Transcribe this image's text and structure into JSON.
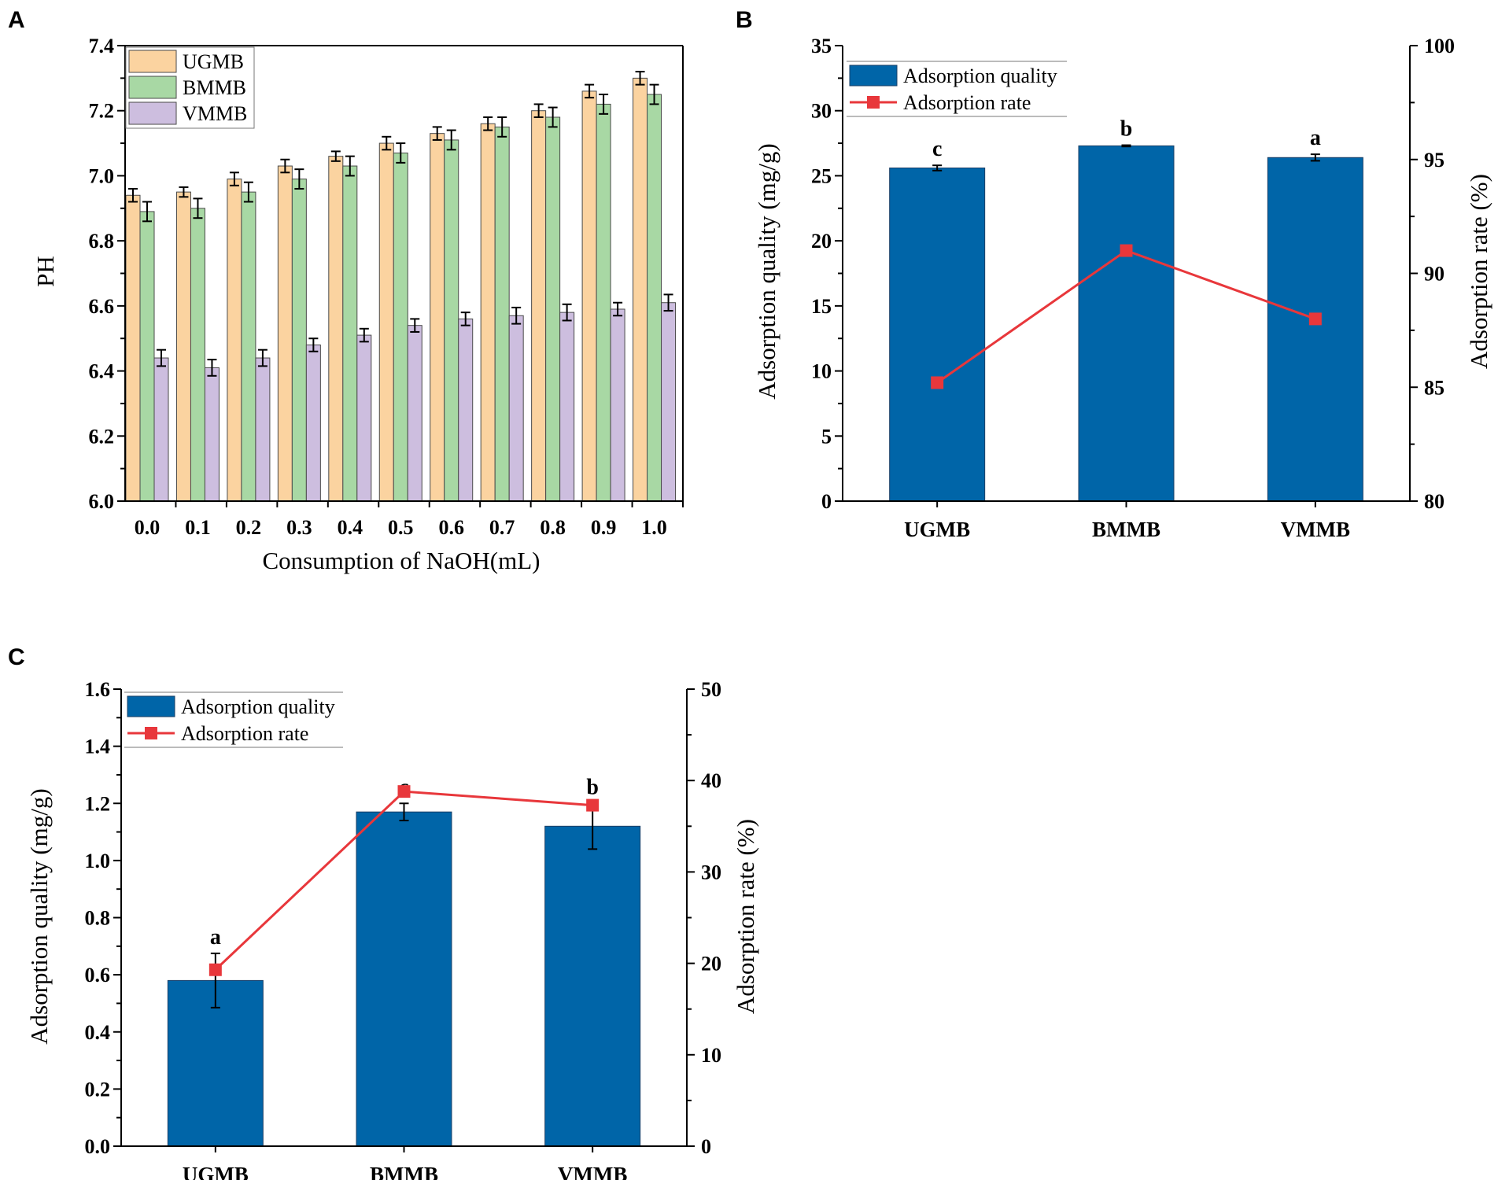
{
  "figure": {
    "colors": {
      "ugmb": "#fbd3a0",
      "bmmb": "#a8d8a4",
      "vmmb": "#cdbedf",
      "quality": "#0065a8",
      "rate": "#e8373b",
      "axis": "#000000"
    }
  },
  "chart_data": [
    {
      "panel": "A",
      "type": "bar",
      "xlabel": "Consumption of NaOH(mL)",
      "ylabel": "PH",
      "ylim": [
        6.0,
        7.4
      ],
      "yticks": [
        "6.0",
        "6.2",
        "6.4",
        "6.6",
        "6.8",
        "7.0",
        "7.2",
        "7.4"
      ],
      "categories": [
        "0.0",
        "0.1",
        "0.2",
        "0.3",
        "0.4",
        "0.5",
        "0.6",
        "0.7",
        "0.8",
        "0.9",
        "1.0"
      ],
      "legend_position": "top-left",
      "series": [
        {
          "name": "UGMB",
          "values": [
            6.94,
            6.95,
            6.99,
            7.03,
            7.06,
            7.1,
            7.13,
            7.16,
            7.2,
            7.26,
            7.3
          ],
          "errors": [
            0.02,
            0.015,
            0.02,
            0.02,
            0.015,
            0.02,
            0.02,
            0.02,
            0.02,
            0.02,
            0.02
          ]
        },
        {
          "name": "BMMB",
          "values": [
            6.89,
            6.9,
            6.95,
            6.99,
            7.03,
            7.07,
            7.11,
            7.15,
            7.18,
            7.22,
            7.25
          ],
          "errors": [
            0.03,
            0.03,
            0.03,
            0.03,
            0.03,
            0.03,
            0.03,
            0.03,
            0.03,
            0.03,
            0.03
          ]
        },
        {
          "name": "VMMB",
          "values": [
            6.44,
            6.41,
            6.44,
            6.48,
            6.51,
            6.54,
            6.56,
            6.57,
            6.58,
            6.59,
            6.61
          ],
          "errors": [
            0.025,
            0.025,
            0.025,
            0.02,
            0.02,
            0.02,
            0.02,
            0.025,
            0.025,
            0.02,
            0.025
          ]
        }
      ]
    },
    {
      "panel": "B",
      "type": "bar",
      "ylabel": "Adsorption quality (mg/g)",
      "y2label": "Adsorption rate (%)",
      "ylim": [
        0,
        35
      ],
      "y2lim": [
        80,
        100
      ],
      "yticks": [
        "0",
        "5",
        "10",
        "15",
        "20",
        "25",
        "30",
        "35"
      ],
      "y2ticks": [
        "80",
        "85",
        "90",
        "95",
        "100"
      ],
      "categories": [
        "UGMB",
        "BMMB",
        "VMMB"
      ],
      "legend_position": "top-left",
      "series": [
        {
          "name": "Adsorption quality",
          "type": "bar",
          "values": [
            25.6,
            27.3,
            26.4
          ],
          "errors": [
            0.2,
            0.05,
            0.25
          ],
          "significance": [
            "c",
            "b",
            "a"
          ]
        },
        {
          "name": "Adsorption rate",
          "type": "line",
          "axis": "right",
          "values": [
            85.2,
            91.0,
            88.0
          ]
        }
      ]
    },
    {
      "panel": "C",
      "type": "bar",
      "ylabel": "Adsorption quality (mg/g)",
      "y2label": "Adsorption rate (%)",
      "ylim": [
        0.0,
        1.6
      ],
      "y2lim": [
        0,
        50
      ],
      "yticks": [
        "0.0",
        "0.2",
        "0.4",
        "0.6",
        "0.8",
        "1.0",
        "1.2",
        "1.4",
        "1.6"
      ],
      "y2ticks": [
        "0",
        "10",
        "20",
        "30",
        "40",
        "50"
      ],
      "categories": [
        "UGMB",
        "BMMB",
        "VMMB"
      ],
      "legend_position": "top-left",
      "series": [
        {
          "name": "Adsorption quality",
          "type": "bar",
          "values": [
            0.58,
            1.17,
            1.12
          ],
          "errors": [
            0.095,
            0.03,
            0.08
          ],
          "significance": [
            "a",
            "c",
            "b"
          ]
        },
        {
          "name": "Adsorption rate",
          "type": "line",
          "axis": "right",
          "values": [
            19.3,
            38.8,
            37.3
          ]
        }
      ]
    }
  ]
}
